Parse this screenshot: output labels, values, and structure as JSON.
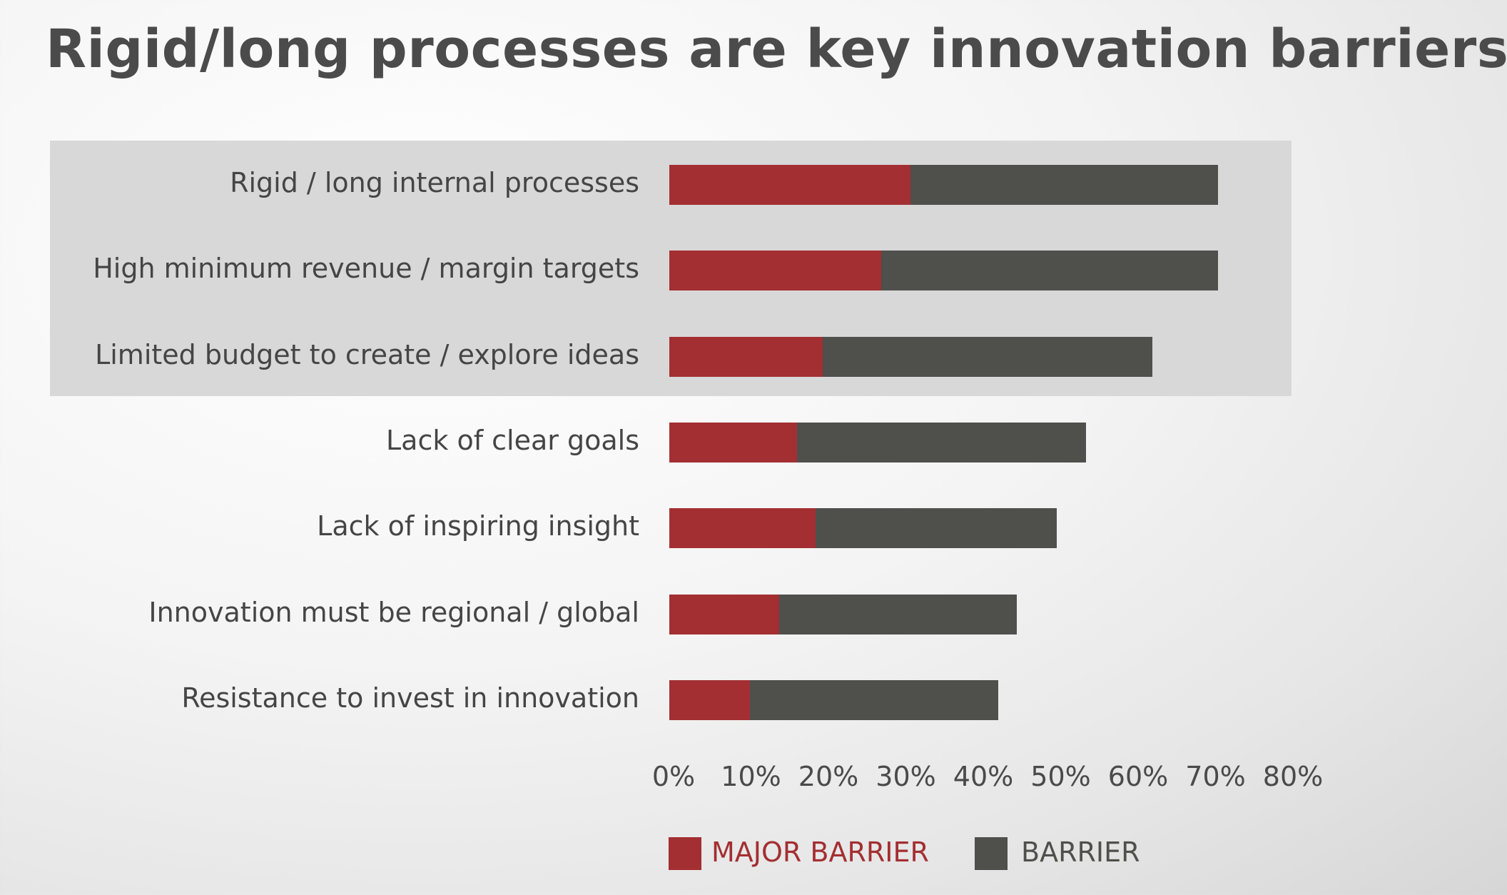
{
  "title": "Rigid/long processes are key innovation barriers",
  "colors": {
    "major": "#a32f32",
    "barrier": "#4f4f4c",
    "highlight": "#d8d8d8",
    "text": "#454545"
  },
  "legend": [
    {
      "label": "MAJOR BARRIER",
      "color": "#a32f32"
    },
    {
      "label": "BARRIER",
      "color": "#4f4f4c"
    }
  ],
  "chart_data": {
    "type": "bar",
    "orientation": "horizontal",
    "stacked": true,
    "categories": [
      "Rigid / long internal processes",
      "High minimum revenue / margin targets",
      "Limited budget to create / explore ideas",
      "Lack of clear goals",
      "Lack of inspiring insight",
      "Innovation must be regional / global",
      "Resistance to invest in innovation"
    ],
    "series": [
      {
        "name": "MAJOR BARRIER",
        "values": [
          33,
          29,
          21,
          17.5,
          20,
          15,
          11
        ]
      },
      {
        "name": "BARRIER",
        "values": [
          42,
          46,
          45,
          39.5,
          33,
          32.5,
          34
        ]
      }
    ],
    "x_ticks": [
      "0%",
      "10%",
      "20%",
      "30%",
      "40%",
      "50%",
      "60%",
      "70%",
      "80%"
    ],
    "xlim": [
      0,
      80
    ],
    "highlighted_categories": [
      0,
      1,
      2
    ],
    "legend_position": "bottom",
    "grid": false
  }
}
